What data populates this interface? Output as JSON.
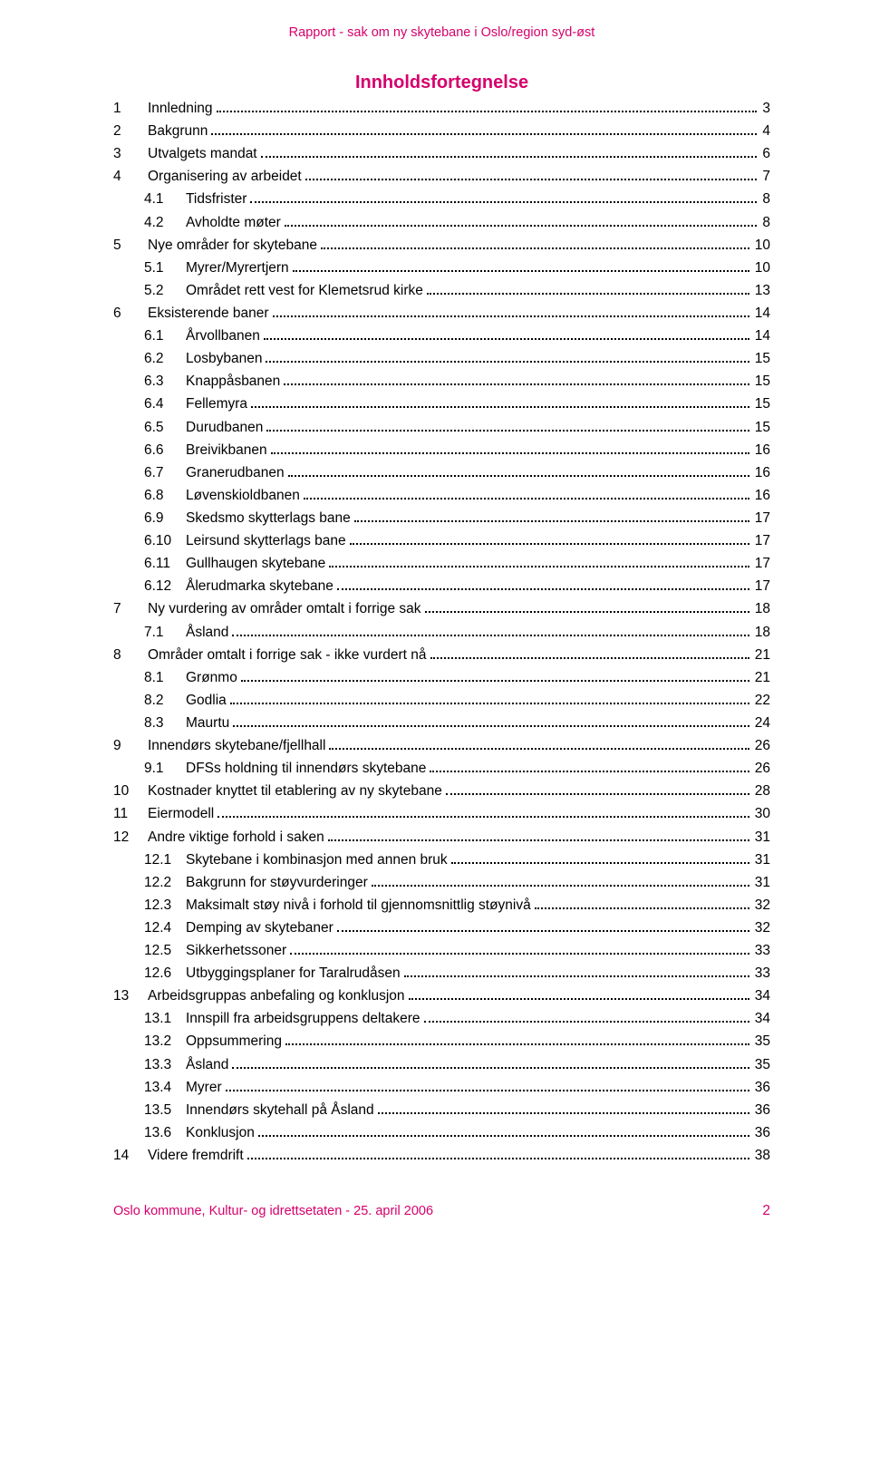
{
  "colors": {
    "accent": "#d6006c",
    "text": "#000000",
    "background": "#ffffff"
  },
  "header": {
    "text": "Rapport - sak om ny skytebane i Oslo/region syd-øst"
  },
  "toc_title": "Innholdsfortegnelse",
  "toc": [
    {
      "level": 1,
      "num": "1",
      "label": "Innledning",
      "page": "3"
    },
    {
      "level": 1,
      "num": "2",
      "label": "Bakgrunn",
      "page": "4"
    },
    {
      "level": 1,
      "num": "3",
      "label": "Utvalgets mandat",
      "page": "6"
    },
    {
      "level": 1,
      "num": "4",
      "label": "Organisering av arbeidet",
      "page": "7"
    },
    {
      "level": 2,
      "num": "4.1",
      "label": "Tidsfrister",
      "page": "8"
    },
    {
      "level": 2,
      "num": "4.2",
      "label": "Avholdte møter",
      "page": "8"
    },
    {
      "level": 1,
      "num": "5",
      "label": "Nye områder for skytebane",
      "page": "10"
    },
    {
      "level": 2,
      "num": "5.1",
      "label": "Myrer/Myrertjern",
      "page": "10"
    },
    {
      "level": 2,
      "num": "5.2",
      "label": "Området rett vest for Klemetsrud kirke",
      "page": "13"
    },
    {
      "level": 1,
      "num": "6",
      "label": "Eksisterende baner",
      "page": "14"
    },
    {
      "level": 2,
      "num": "6.1",
      "label": "Årvollbanen",
      "page": "14"
    },
    {
      "level": 2,
      "num": "6.2",
      "label": "Losbybanen",
      "page": "15"
    },
    {
      "level": 2,
      "num": "6.3",
      "label": "Knappåsbanen",
      "page": "15"
    },
    {
      "level": 2,
      "num": "6.4",
      "label": "Fellemyra",
      "page": "15"
    },
    {
      "level": 2,
      "num": "6.5",
      "label": "Durudbanen",
      "page": "15"
    },
    {
      "level": 2,
      "num": "6.6",
      "label": "Breivikbanen",
      "page": "16"
    },
    {
      "level": 2,
      "num": "6.7",
      "label": "Granerudbanen",
      "page": "16"
    },
    {
      "level": 2,
      "num": "6.8",
      "label": "Løvenskioldbanen",
      "page": "16"
    },
    {
      "level": 2,
      "num": "6.9",
      "label": "Skedsmo skytterlags bane",
      "page": "17"
    },
    {
      "level": 2,
      "num": "6.10",
      "label": "Leirsund skytterlags bane",
      "page": "17"
    },
    {
      "level": 2,
      "num": "6.11",
      "label": "Gullhaugen skytebane",
      "page": "17"
    },
    {
      "level": 2,
      "num": "6.12",
      "label": "Ålerudmarka skytebane",
      "page": "17"
    },
    {
      "level": 1,
      "num": "7",
      "label": "Ny vurdering av områder omtalt i forrige sak",
      "page": "18"
    },
    {
      "level": 2,
      "num": "7.1",
      "label": "Åsland",
      "page": "18"
    },
    {
      "level": 1,
      "num": "8",
      "label": "Områder omtalt i forrige sak - ikke vurdert nå",
      "page": "21"
    },
    {
      "level": 2,
      "num": "8.1",
      "label": "Grønmo",
      "page": "21"
    },
    {
      "level": 2,
      "num": "8.2",
      "label": "Godlia",
      "page": "22"
    },
    {
      "level": 2,
      "num": "8.3",
      "label": "Maurtu",
      "page": "24"
    },
    {
      "level": 1,
      "num": "9",
      "label": "Innendørs skytebane/fjellhall",
      "page": "26"
    },
    {
      "level": 2,
      "num": "9.1",
      "label": "DFSs holdning til innendørs skytebane",
      "page": "26"
    },
    {
      "level": 1,
      "num": "10",
      "label": "Kostnader knyttet til etablering av ny skytebane",
      "page": "28"
    },
    {
      "level": 1,
      "num": "11",
      "label": "Eiermodell",
      "page": "30"
    },
    {
      "level": 1,
      "num": "12",
      "label": "Andre viktige forhold i saken",
      "page": "31"
    },
    {
      "level": 2,
      "num": "12.1",
      "label": "Skytebane i kombinasjon med annen bruk",
      "page": "31"
    },
    {
      "level": 2,
      "num": "12.2",
      "label": "Bakgrunn for støyvurderinger",
      "page": "31"
    },
    {
      "level": 2,
      "num": "12.3",
      "label": "Maksimalt støy nivå i forhold til gjennomsnittlig støynivå",
      "page": "32"
    },
    {
      "level": 2,
      "num": "12.4",
      "label": "Demping av skytebaner",
      "page": "32"
    },
    {
      "level": 2,
      "num": "12.5",
      "label": "Sikkerhetssoner",
      "page": "33"
    },
    {
      "level": 2,
      "num": "12.6",
      "label": "Utbyggingsplaner for Taralrudåsen",
      "page": "33"
    },
    {
      "level": 1,
      "num": "13",
      "label": "Arbeidsgruppas anbefaling og konklusjon",
      "page": "34"
    },
    {
      "level": 2,
      "num": "13.1",
      "label": "Innspill fra arbeidsgruppens deltakere",
      "page": "34"
    },
    {
      "level": 2,
      "num": "13.2",
      "label": "Oppsummering",
      "page": "35"
    },
    {
      "level": 2,
      "num": "13.3",
      "label": "Åsland",
      "page": "35"
    },
    {
      "level": 2,
      "num": "13.4",
      "label": "Myrer",
      "page": "36"
    },
    {
      "level": 2,
      "num": "13.5",
      "label": "Innendørs skytehall på Åsland",
      "page": "36"
    },
    {
      "level": 2,
      "num": "13.6",
      "label": "Konklusjon",
      "page": "36"
    },
    {
      "level": 1,
      "num": "14",
      "label": "Videre fremdrift",
      "page": "38"
    }
  ],
  "footer": {
    "left": "Oslo kommune, Kultur- og idrettsetaten - 25. april 2006",
    "page": "2"
  }
}
